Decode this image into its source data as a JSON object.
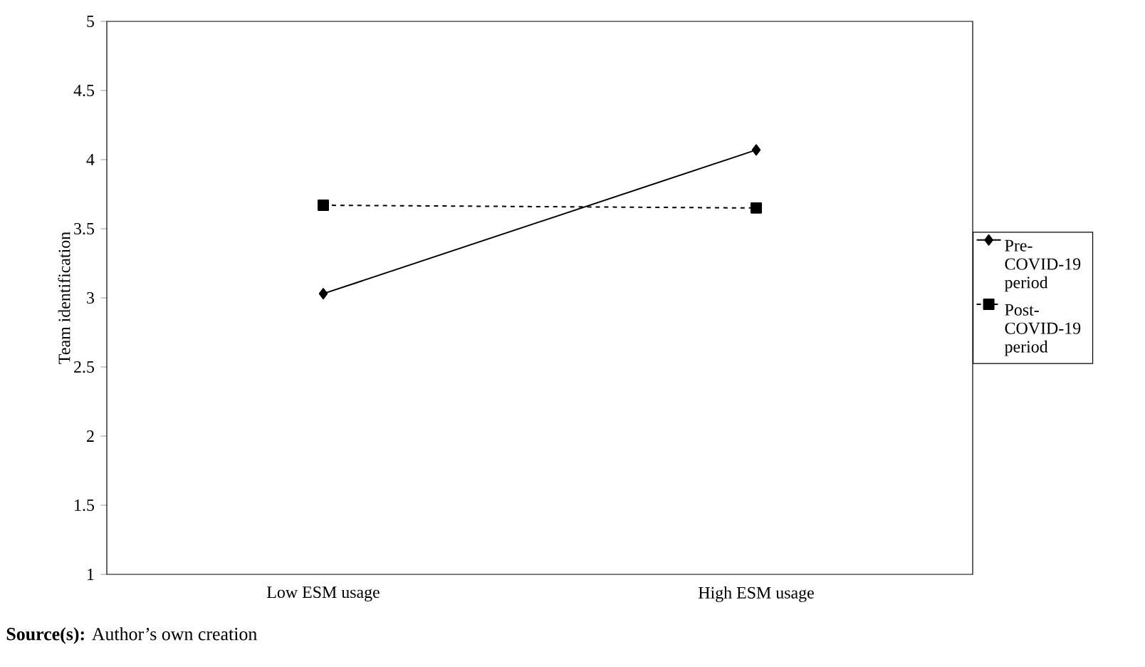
{
  "chart_data": {
    "type": "line",
    "ylabel": "Team identification",
    "categories": [
      "Low ESM usage",
      "High ESM usage"
    ],
    "series": [
      {
        "name": "Pre-COVID-19 period",
        "color": "#000000",
        "values": [
          3.03,
          4.07
        ],
        "marker": "diamond",
        "line_style": "solid"
      },
      {
        "name": "Post-COVID-19 period",
        "color": "#000000",
        "values": [
          3.67,
          3.65
        ],
        "marker": "square",
        "line_style": "dashed"
      }
    ],
    "ylim": [
      1,
      5
    ],
    "yticks": [
      1,
      1.5,
      2,
      2.5,
      3,
      3.5,
      4,
      4.5,
      5
    ],
    "grid": false,
    "legend": "right",
    "annotations": [
      "**Source(s):** Author’s own creation"
    ]
  }
}
